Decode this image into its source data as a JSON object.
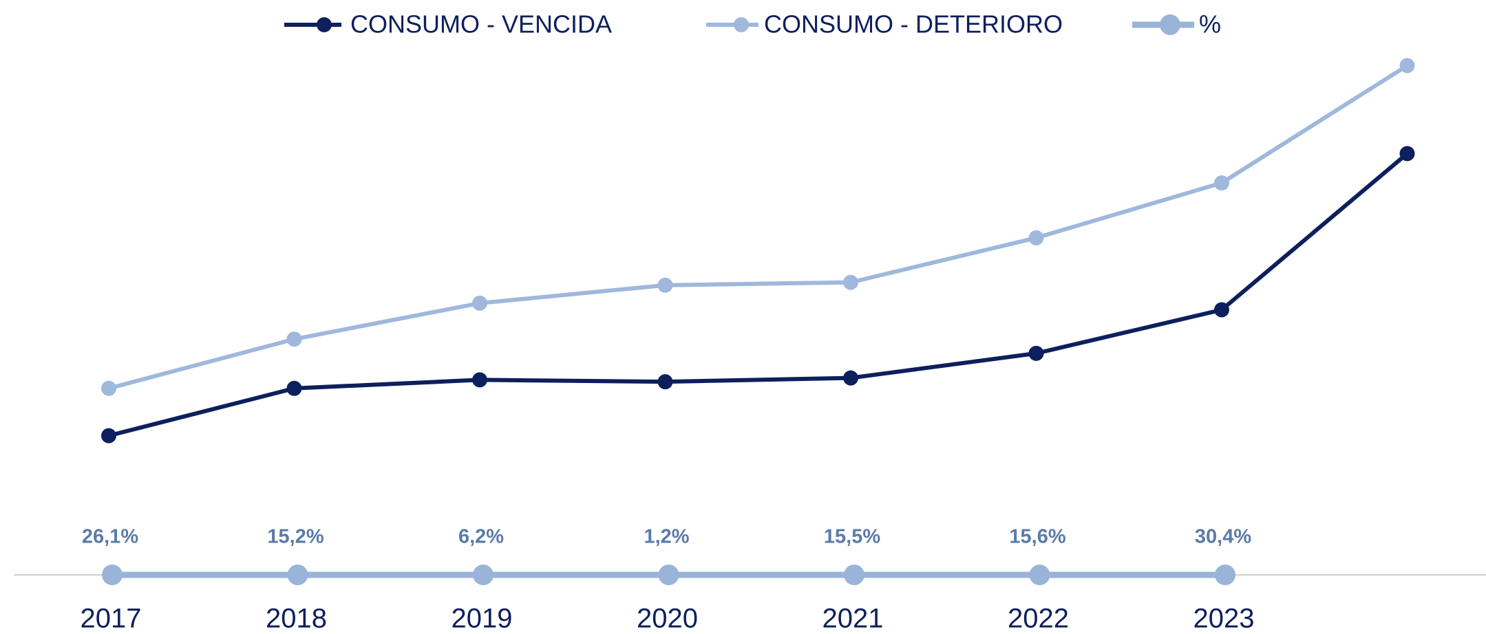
{
  "chart_data": {
    "type": "line",
    "categories": [
      "2017",
      "2018",
      "2019",
      "2020",
      "2021",
      "2022",
      "2023",
      null
    ],
    "ylim": [
      0,
      600
    ],
    "series": [
      {
        "name": "CONSUMO - VENCIDA",
        "color": "#0d1f5c",
        "values": [
          147,
          197,
          206,
          204,
          208,
          234,
          280,
          445
        ]
      },
      {
        "name": "CONSUMO - DETERIORO",
        "color": "#9fb8dc",
        "values": [
          197,
          249,
          287,
          306,
          309,
          356,
          414,
          538
        ]
      },
      {
        "name": "%",
        "color": "#9ab3d9",
        "values": [
          26.1,
          15.2,
          6.2,
          1.2,
          15.5,
          15.6,
          30.4,
          null
        ],
        "value_labels": [
          "26,1%",
          "15,2%",
          "6,2%",
          "1,2%",
          "15,5%",
          "15,6%",
          "30,4%",
          null
        ]
      }
    ]
  }
}
